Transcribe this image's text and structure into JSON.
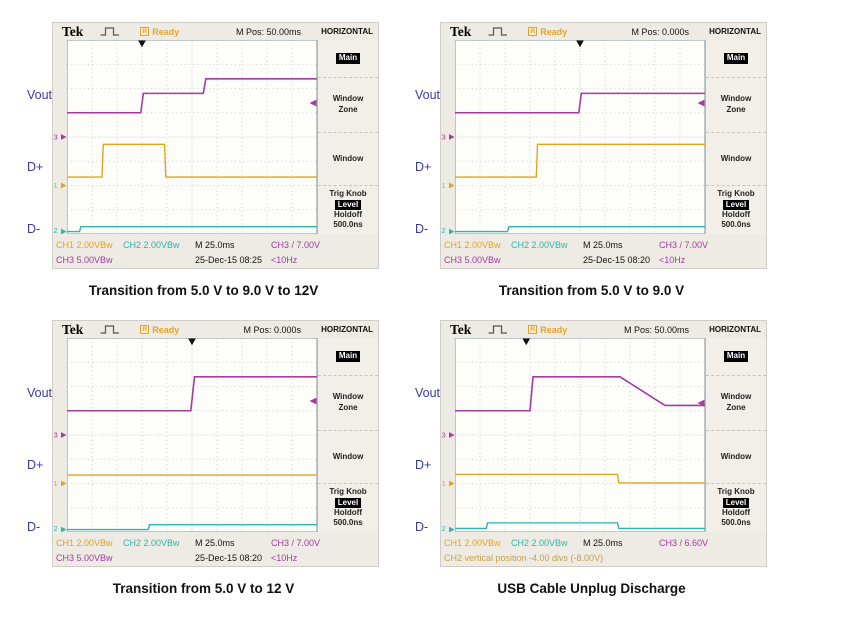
{
  "page": {
    "background": "#ffffff"
  },
  "colors": {
    "ch1_orange": "#e2a41f",
    "ch2_cyan": "#2fb5ac",
    "ch3_magenta": "#a33ba1",
    "label_blue": "#3a3aa0",
    "ready_orange": "#e8a32e",
    "status_khaki": "#c5a050",
    "grid_dot": "#b7c3cc",
    "crt_bg": "#fdfdfa",
    "bezel_bg": "#edebe3",
    "menu_bg": "#f1efe8",
    "selected_bg": "#000000",
    "selected_fg": "#ffffff"
  },
  "signals": {
    "vout": "Vout",
    "dplus": "D+",
    "dminus": "D-"
  },
  "menu": {
    "title": "HORIZONTAL",
    "main": "Main",
    "window_zone_l1": "Window",
    "window_zone_l2": "Zone",
    "window": "Window",
    "trig_knob": "Trig Knob",
    "level": "Level",
    "holdoff": "Holdoff",
    "holdoff_value": "500.0ns"
  },
  "scopes": [
    {
      "header": {
        "brand": "Tek",
        "status_icon": "R",
        "status": "Ready",
        "m_pos": "M Pos: 50.00ms"
      },
      "status1": {
        "ch1": "CH1 2.00VBw",
        "ch2": "CH2 2.00VBw",
        "time": "M 25.0ms",
        "trig": "CH3 / 7.00V"
      },
      "status2": {
        "left": "CH3 5.00VBw",
        "center": "25-Dec-15 08:25",
        "right": "<10Hz",
        "khaki": false
      },
      "caption": "Transition from 5.0 V to 9.0 V to 12V"
    },
    {
      "header": {
        "brand": "Tek",
        "status_icon": "R",
        "status": "Ready",
        "m_pos": "M Pos: 0.000s"
      },
      "status1": {
        "ch1": "CH1 2.00VBw",
        "ch2": "CH2 2.00VBw",
        "time": "M 25.0ms",
        "trig": "CH3 / 7.00V"
      },
      "status2": {
        "left": "CH3 5.00VBw",
        "center": "25-Dec-15 08:20",
        "right": "<10Hz",
        "khaki": false
      },
      "caption": "Transition from 5.0 V to 9.0 V"
    },
    {
      "header": {
        "brand": "Tek",
        "status_icon": "R",
        "status": "Ready",
        "m_pos": "M Pos: 0.000s"
      },
      "status1": {
        "ch1": "CH1 2.00VBw",
        "ch2": "CH2 2.00VBw",
        "time": "M 25.0ms",
        "trig": "CH3 / 7.00V"
      },
      "status2": {
        "left": "CH3 5.00VBw",
        "center": "25-Dec-15 08:20",
        "right": "<10Hz",
        "khaki": false
      },
      "caption": "Transition from 5.0 V to 12 V"
    },
    {
      "header": {
        "brand": "Tek",
        "status_icon": "R",
        "status": "Ready",
        "m_pos": "M Pos: 50.00ms"
      },
      "status1": {
        "ch1": "CH1 2.00VBw",
        "ch2": "CH2 2.00VBw",
        "time": "M 25.0ms",
        "trig": "CH3 / 6.60V"
      },
      "status2": {
        "left": "CH2 vertical position -4.00 divs (-8.00V)",
        "center": "",
        "right": "",
        "khaki": true
      },
      "caption": "USB Cable Unplug Discharge"
    }
  ],
  "chart_data": [
    {
      "type": "line",
      "title": "Transition from 5.0 V to 9.0 V to 12V",
      "x_axis": {
        "divisions": 10,
        "time_per_div": "25.0ms",
        "m_pos": "50.00ms"
      },
      "y_axis": {
        "divisions": 8
      },
      "trigger": {
        "source": "CH3",
        "slope": "rising",
        "level_v": 7.0,
        "x_frac": 0.3,
        "coupling": "<10Hz"
      },
      "series": [
        {
          "name": "Vout",
          "ch": "3",
          "color_key": "ch3_magenta",
          "volts_per_div": 5.0,
          "ground_div": 4.0,
          "points": [
            [
              0,
              5
            ],
            [
              0.295,
              5
            ],
            [
              0.305,
              9
            ],
            [
              0.545,
              9
            ],
            [
              0.555,
              12
            ],
            [
              1,
              12
            ]
          ]
        },
        {
          "name": "D+",
          "ch": "1",
          "color_key": "ch1_orange",
          "volts_per_div": 2.0,
          "ground_div": 6.0,
          "points": [
            [
              0,
              0.7
            ],
            [
              0.14,
              0.7
            ],
            [
              0.145,
              3.4
            ],
            [
              0.39,
              3.4
            ],
            [
              0.395,
              0.7
            ],
            [
              1,
              0.7
            ]
          ]
        },
        {
          "name": "D-",
          "ch": "2",
          "color_key": "ch2_cyan",
          "volts_per_div": 2.0,
          "ground_div": 7.9,
          "points": [
            [
              0,
              0
            ],
            [
              0.05,
              0
            ],
            [
              0.055,
              0.4
            ],
            [
              1,
              0.4
            ]
          ]
        }
      ]
    },
    {
      "type": "line",
      "title": "Transition from 5.0 V to 9.0 V",
      "x_axis": {
        "divisions": 10,
        "time_per_div": "25.0ms",
        "m_pos": "0.000s"
      },
      "y_axis": {
        "divisions": 8
      },
      "trigger": {
        "source": "CH3",
        "slope": "rising",
        "level_v": 7.0,
        "x_frac": 0.5,
        "coupling": "<10Hz"
      },
      "series": [
        {
          "name": "Vout",
          "ch": "3",
          "color_key": "ch3_magenta",
          "volts_per_div": 5.0,
          "ground_div": 4.0,
          "points": [
            [
              0,
              5
            ],
            [
              0.495,
              5
            ],
            [
              0.505,
              9
            ],
            [
              1,
              9
            ]
          ]
        },
        {
          "name": "D+",
          "ch": "1",
          "color_key": "ch1_orange",
          "volts_per_div": 2.0,
          "ground_div": 6.0,
          "points": [
            [
              0,
              0.7
            ],
            [
              0.325,
              0.7
            ],
            [
              0.33,
              3.4
            ],
            [
              1,
              3.4
            ]
          ]
        },
        {
          "name": "D-",
          "ch": "2",
          "color_key": "ch2_cyan",
          "volts_per_div": 2.0,
          "ground_div": 7.9,
          "points": [
            [
              0,
              0
            ],
            [
              0.21,
              0
            ],
            [
              0.215,
              0.4
            ],
            [
              1,
              0.4
            ]
          ]
        }
      ]
    },
    {
      "type": "line",
      "title": "Transition from 5.0 V to 12 V",
      "x_axis": {
        "divisions": 10,
        "time_per_div": "25.0ms",
        "m_pos": "0.000s"
      },
      "y_axis": {
        "divisions": 8
      },
      "trigger": {
        "source": "CH3",
        "slope": "rising",
        "level_v": 7.0,
        "x_frac": 0.5,
        "coupling": "<10Hz"
      },
      "series": [
        {
          "name": "Vout",
          "ch": "3",
          "color_key": "ch3_magenta",
          "volts_per_div": 5.0,
          "ground_div": 4.0,
          "points": [
            [
              0,
              5
            ],
            [
              0.495,
              5
            ],
            [
              0.51,
              12
            ],
            [
              1,
              12
            ]
          ]
        },
        {
          "name": "D+",
          "ch": "1",
          "color_key": "ch1_orange",
          "volts_per_div": 2.0,
          "ground_div": 6.0,
          "points": [
            [
              0,
              0.7
            ],
            [
              1,
              0.7
            ]
          ]
        },
        {
          "name": "D-",
          "ch": "2",
          "color_key": "ch2_cyan",
          "volts_per_div": 2.0,
          "ground_div": 7.9,
          "points": [
            [
              0,
              0
            ],
            [
              0.325,
              0
            ],
            [
              0.33,
              0.4
            ],
            [
              1,
              0.4
            ]
          ]
        }
      ]
    },
    {
      "type": "line",
      "title": "USB Cable Unplug Discharge",
      "x_axis": {
        "divisions": 10,
        "time_per_div": "25.0ms",
        "m_pos": "50.00ms"
      },
      "y_axis": {
        "divisions": 8
      },
      "trigger": {
        "source": "CH3",
        "slope": "rising",
        "level_v": 6.6,
        "x_frac": 0.285
      },
      "series": [
        {
          "name": "Vout",
          "ch": "3",
          "color_key": "ch3_magenta",
          "volts_per_div": 5.0,
          "ground_div": 4.0,
          "points": [
            [
              0,
              5
            ],
            [
              0.3,
              5
            ],
            [
              0.312,
              12
            ],
            [
              0.66,
              12
            ],
            [
              0.84,
              6.1
            ],
            [
              1,
              6.1
            ]
          ]
        },
        {
          "name": "D+",
          "ch": "1",
          "color_key": "ch1_orange",
          "volts_per_div": 2.0,
          "ground_div": 6.0,
          "points": [
            [
              0,
              0.75
            ],
            [
              0.65,
              0.75
            ],
            [
              0.655,
              0.05
            ],
            [
              1,
              0.05
            ]
          ]
        },
        {
          "name": "D-",
          "ch": "2",
          "color_key": "ch2_cyan",
          "volts_per_div": 2.0,
          "ground_div": 7.9,
          "points": [
            [
              0,
              0.1
            ],
            [
              0.125,
              0.1
            ],
            [
              0.13,
              0.55
            ],
            [
              0.65,
              0.55
            ],
            [
              0.655,
              0.1
            ],
            [
              1,
              0.1
            ]
          ]
        }
      ]
    }
  ]
}
